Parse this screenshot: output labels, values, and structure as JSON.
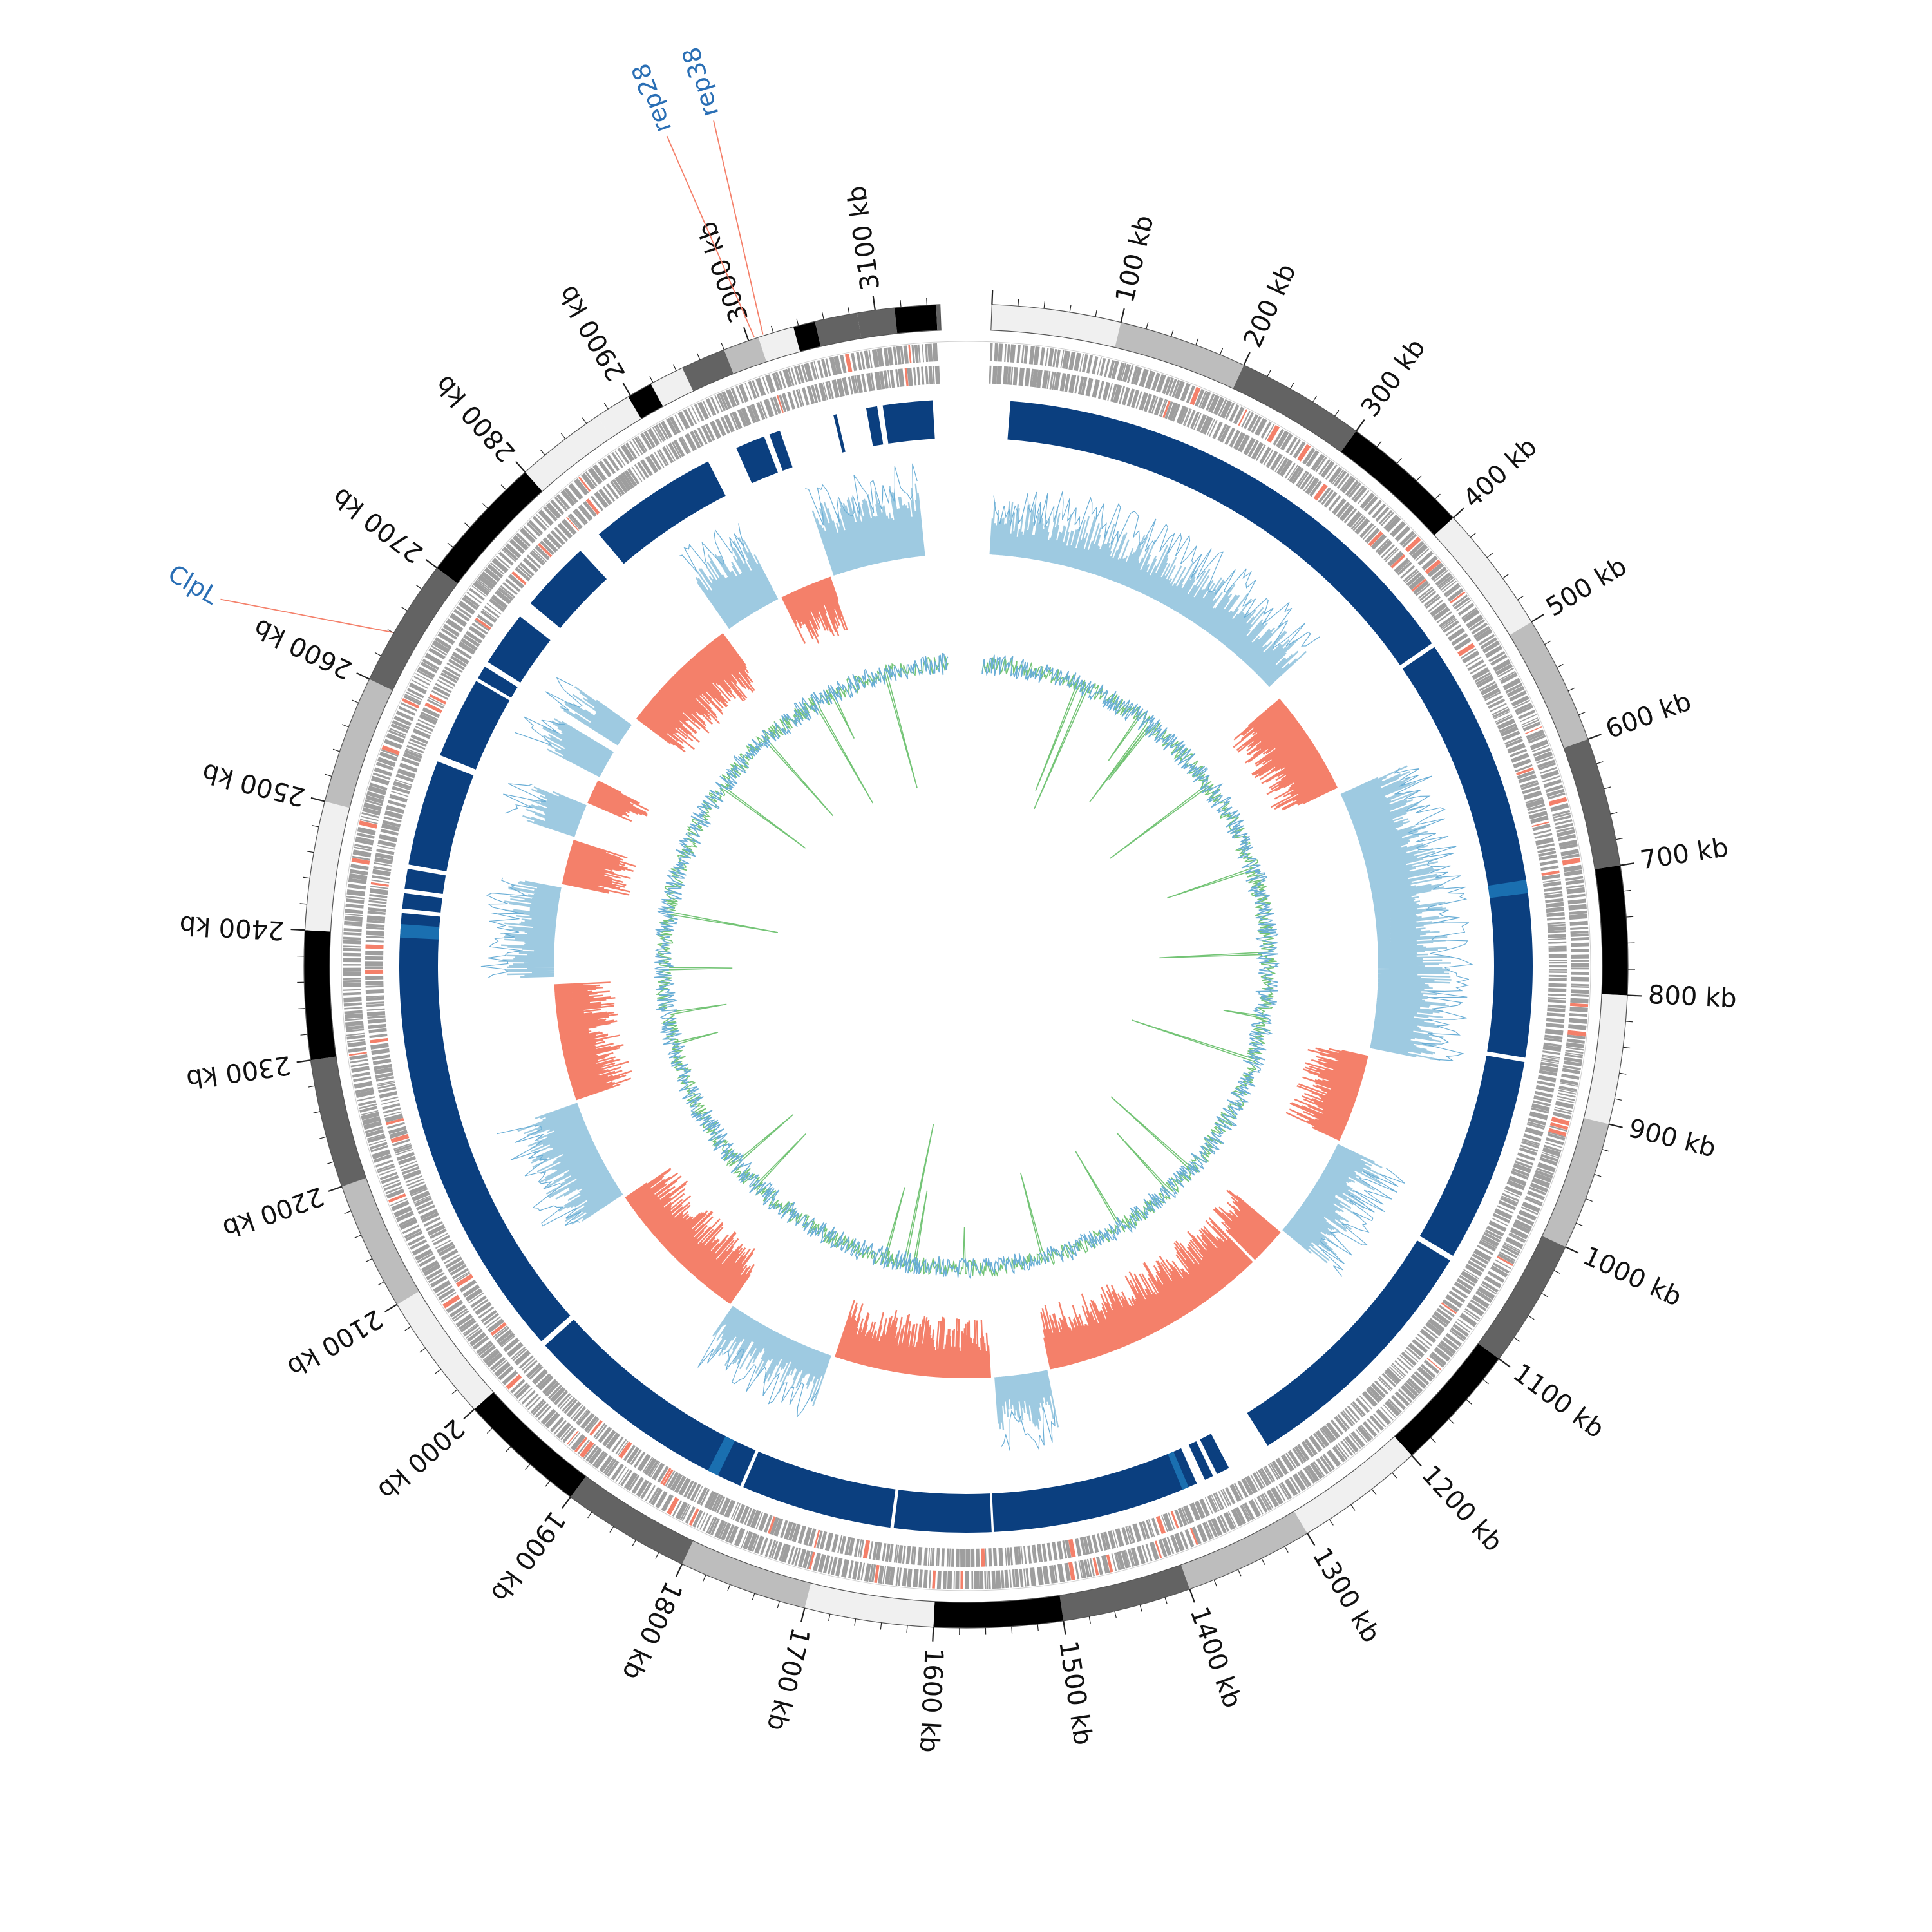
{
  "genome_map": {
    "genome_size_kb": 3150,
    "tick_label_suffix": " kb",
    "tick_labels_kb": [
      100,
      200,
      300,
      400,
      500,
      600,
      700,
      800,
      900,
      1000,
      1100,
      1200,
      1300,
      1400,
      1500,
      1600,
      1700,
      1800,
      1900,
      2000,
      2100,
      2200,
      2300,
      2400,
      2500,
      2600,
      2700,
      2800,
      2900,
      3000,
      3100
    ],
    "callouts": [
      {
        "label": "ClpL",
        "position_kb": 2640
      },
      {
        "label": "rep28",
        "position_kb": 3005
      },
      {
        "label": "rep38",
        "position_kb": 3012
      }
    ],
    "band_colors": [
      "#f0f0f0",
      "#bdbdbd",
      "#636363",
      "#000000"
    ],
    "colors": {
      "gene_gray": "#9e9e9e",
      "gene_red": "#f4806a",
      "block_blue": "#0b3f7f",
      "block_blue_light": "#1a6fb0",
      "skew_positive": "#f4806a",
      "skew_negative": "#9ecae1",
      "skew_blue_line": "#6aaed6",
      "gc_green": "#74c476",
      "callout_line": "#f4806a",
      "callout_text": "#2a6fb5"
    }
  }
}
